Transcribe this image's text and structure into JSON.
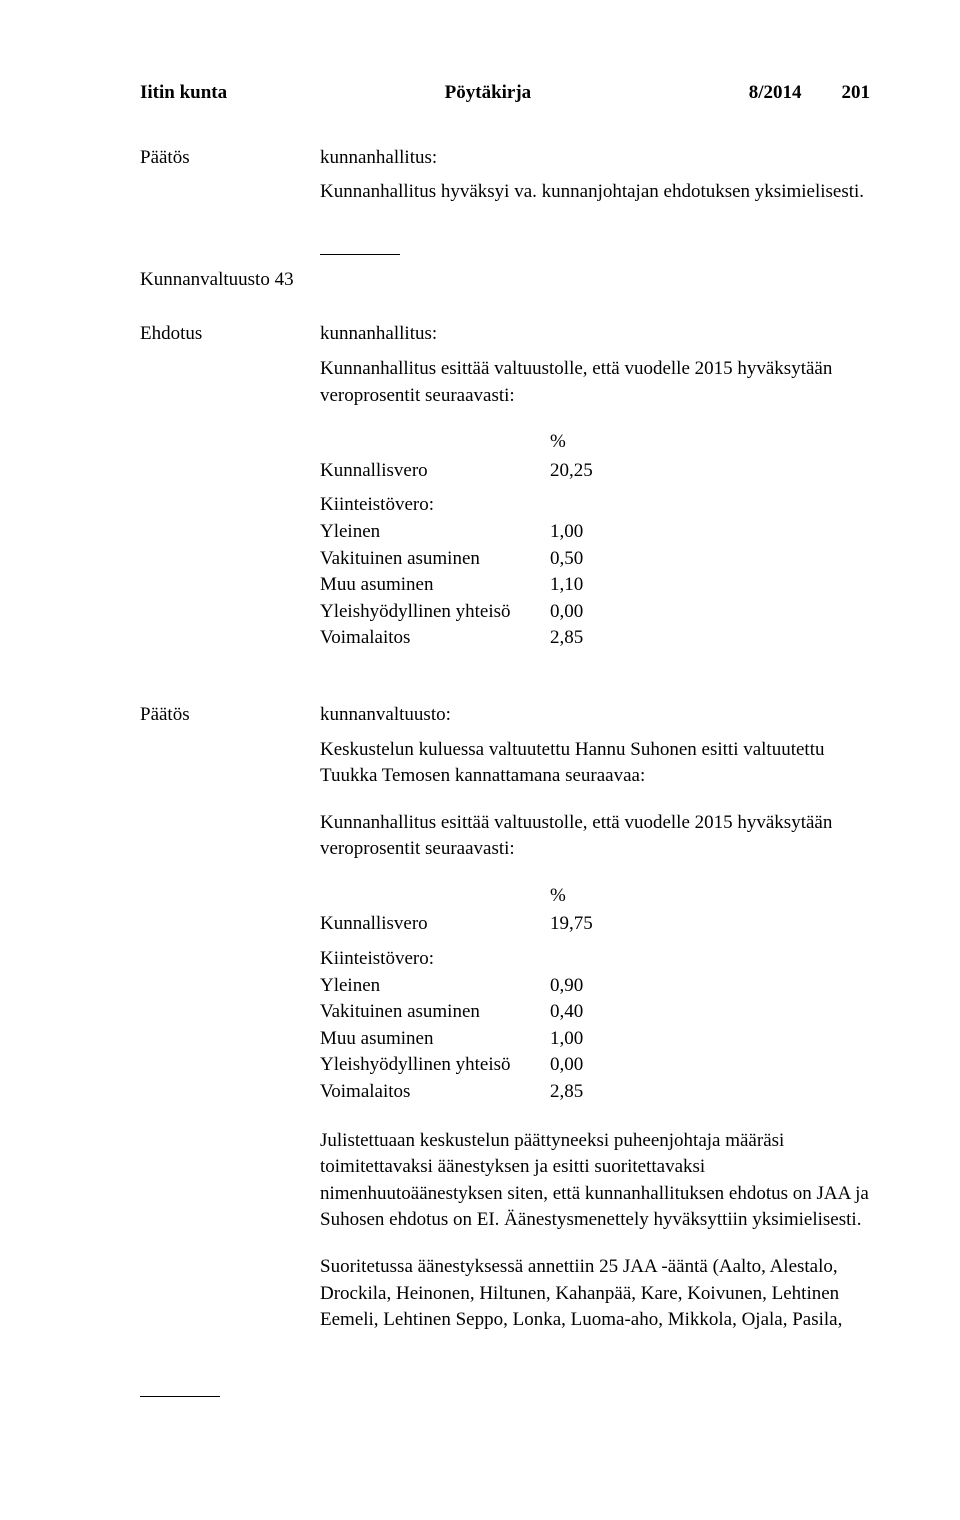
{
  "header": {
    "organization": "Iitin kunta",
    "doc_type": "Pöytäkirja",
    "doc_number": "8/2014",
    "page": "201"
  },
  "section1": {
    "label": "Päätös",
    "who": "kunnanhallitus:",
    "text": "Kunnanhallitus hyväksyi va. kunnanjohtajan ehdotuksen yksimielisesti."
  },
  "kv_heading": "Kunnanvaltuusto 43",
  "ehdotus": {
    "label": "Ehdotus",
    "who": "kunnanhallitus:",
    "text": "Kunnanhallitus esittää valtuustolle, että vuodelle 2015 hyväksytään veroprosentit seuraavasti:",
    "table1": {
      "percent_symbol": "%",
      "kunnallisvero_label": "Kunnallisvero",
      "kunnallisvero_value": "20,25",
      "kiinteisto_label": "Kiinteistövero:",
      "rows": [
        {
          "label": "Yleinen",
          "value": "1,00"
        },
        {
          "label": "Vakituinen asuminen",
          "value": "0,50"
        },
        {
          "label": "Muu asuminen",
          "value": "1,10"
        },
        {
          "label": "Yleishyödyllinen yhteisö",
          "value": "0,00"
        },
        {
          "label": "Voimalaitos",
          "value": "2,85"
        }
      ]
    }
  },
  "paatos2": {
    "label": "Päätös",
    "who": "kunnanvaltuusto:",
    "p1": "Keskustelun kuluessa valtuutettu Hannu Suhonen esitti valtuutettu Tuukka Temosen kannattamana seuraavaa:",
    "p2": "Kunnanhallitus esittää valtuustolle, että vuodelle 2015 hyväksytään veroprosentit seuraavasti:",
    "table2": {
      "percent_symbol": "%",
      "kunnallisvero_label": "Kunnallisvero",
      "kunnallisvero_value": "19,75",
      "kiinteisto_label": "Kiinteistövero:",
      "rows": [
        {
          "label": "Yleinen",
          "value": "0,90"
        },
        {
          "label": "Vakituinen asuminen",
          "value": "0,40"
        },
        {
          "label": "Muu asuminen",
          "value": "1,00"
        },
        {
          "label": "Yleishyödyllinen yhteisö",
          "value": "0,00"
        },
        {
          "label": "Voimalaitos",
          "value": "2,85"
        }
      ]
    },
    "p3": "Julistettuaan keskustelun päättyneeksi puheenjohtaja määräsi toimitettavaksi äänestyksen ja esitti suoritettavaksi nimenhuutoäänestyksen siten, että kunnanhallituksen ehdotus on JAA ja Suhosen ehdotus on EI. Äänestysmenettely hyväksyttiin yksimielisesti.",
    "p4": "Suoritetussa äänestyksessä annettiin 25 JAA -ääntä (Aalto, Alestalo, Drockila, Heinonen, Hiltunen, Kahanpää, Kare, Koivunen, Lehtinen Eemeli, Lehtinen Seppo, Lonka, Luoma-aho, Mikkola, Ojala, Pasila,"
  }
}
